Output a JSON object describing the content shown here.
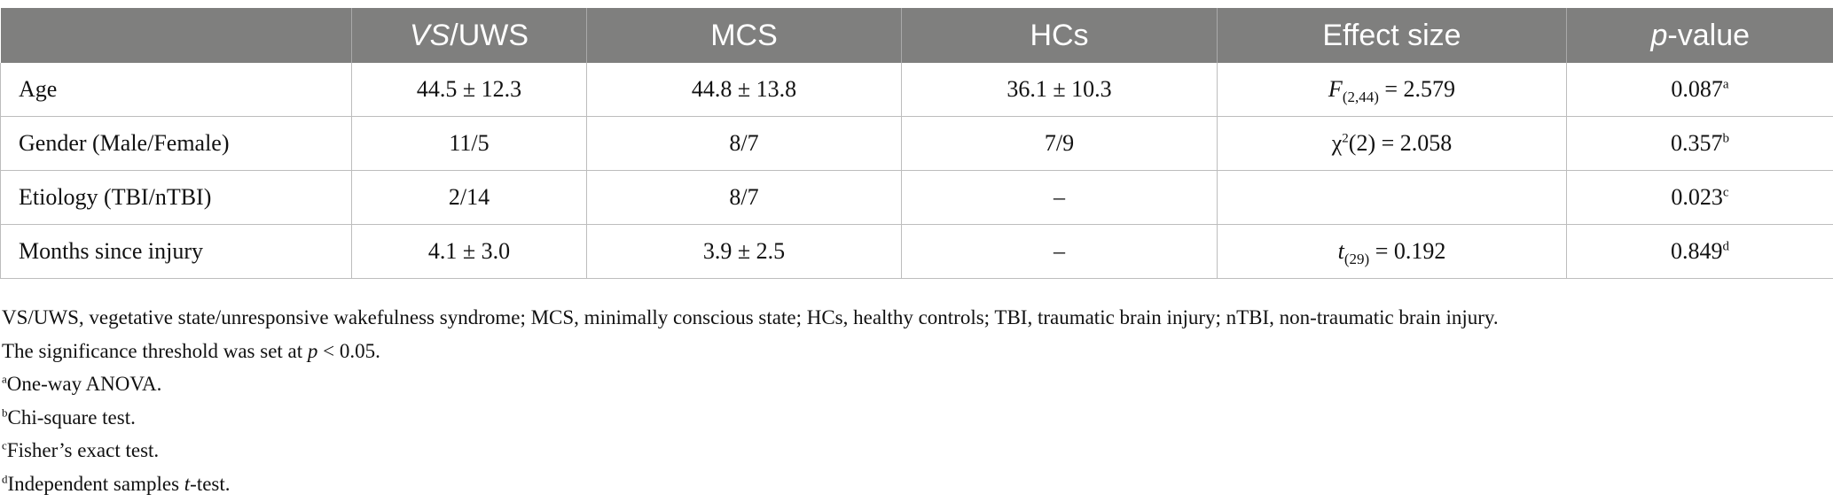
{
  "table": {
    "headers": {
      "col0": "",
      "col1_italic": "VS",
      "col1_rest": "/UWS",
      "col2": "MCS",
      "col3": "HCs",
      "col4": "Effect size",
      "col5_italic": "p",
      "col5_rest": "-value"
    },
    "rows": [
      {
        "label": "Age",
        "vs": "44.5 ± 12.3",
        "mcs": "44.8 ± 13.8",
        "hc": "36.1 ± 10.3",
        "effect_var": "F",
        "effect_sub": "(2,44)",
        "effect_rest": " = 2.579",
        "p": "0.087",
        "p_note": "a"
      },
      {
        "label": "Gender (Male/Female)",
        "vs": "11/5",
        "mcs": "8/7",
        "hc": "7/9",
        "effect_var": "χ",
        "effect_sup": "2",
        "effect_rest": "(2) = 2.058",
        "p": "0.357",
        "p_note": "b"
      },
      {
        "label": "Etiology (TBI/nTBI)",
        "vs": "2/14",
        "mcs": "8/7",
        "hc": "–",
        "p": "0.023",
        "p_note": "c"
      },
      {
        "label": "Months since injury",
        "vs": "4.1 ± 3.0",
        "mcs": "3.9 ± 2.5",
        "hc": "–",
        "effect_var": "t",
        "effect_sub": "(29)",
        "effect_rest": " = 0.192",
        "p": "0.849",
        "p_note": "d"
      }
    ]
  },
  "notes": {
    "abbreviations": "VS/UWS, vegetative state/unresponsive wakefulness syndrome; MCS, minimally conscious state; HCs, healthy controls; TBI, traumatic brain injury; nTBI, non-traumatic brain injury.",
    "threshold_pre": "The significance threshold was set at ",
    "threshold_var": "p",
    "threshold_post": " < 0.05.",
    "fn_a_mark": "a",
    "fn_a_text": "One-way ANOVA.",
    "fn_b_mark": "b",
    "fn_b_text": "Chi-square test.",
    "fn_c_mark": "c",
    "fn_c_text": "Fisher’s exact test.",
    "fn_d_mark": "d",
    "fn_d_text_pre": "Independent samples ",
    "fn_d_var": "t",
    "fn_d_text_post": "-test."
  }
}
